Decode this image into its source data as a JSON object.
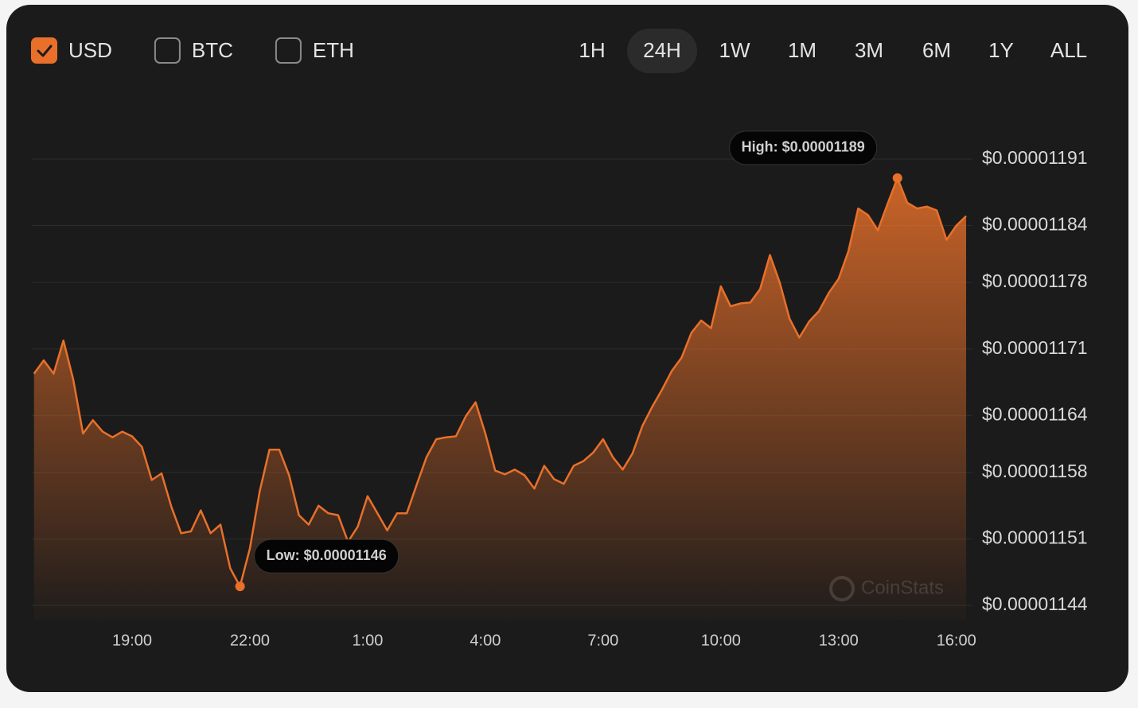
{
  "currencies": [
    {
      "label": "USD",
      "checked": true
    },
    {
      "label": "BTC",
      "checked": false
    },
    {
      "label": "ETH",
      "checked": false
    }
  ],
  "ranges": [
    {
      "label": "1H",
      "selected": false
    },
    {
      "label": "24H",
      "selected": true
    },
    {
      "label": "1W",
      "selected": false
    },
    {
      "label": "1M",
      "selected": false
    },
    {
      "label": "3M",
      "selected": false
    },
    {
      "label": "6M",
      "selected": false
    },
    {
      "label": "1Y",
      "selected": false
    },
    {
      "label": "ALL",
      "selected": false
    }
  ],
  "chart_data": {
    "type": "area",
    "watermark": "CoinStats",
    "color": "#e8702a",
    "grid": true,
    "x": [
      "16:30",
      "16:45",
      "17:00",
      "17:15",
      "17:30",
      "17:45",
      "18:00",
      "18:15",
      "18:30",
      "18:45",
      "19:00",
      "19:15",
      "19:30",
      "19:45",
      "20:00",
      "20:15",
      "20:30",
      "20:45",
      "21:00",
      "21:15",
      "21:30",
      "21:45",
      "22:00",
      "22:15",
      "22:30",
      "22:45",
      "23:00",
      "23:15",
      "23:30",
      "23:45",
      "0:00",
      "0:15",
      "0:30",
      "0:45",
      "1:00",
      "1:15",
      "1:30",
      "1:45",
      "2:00",
      "2:15",
      "2:30",
      "2:45",
      "3:00",
      "3:15",
      "3:30",
      "3:45",
      "4:00",
      "4:15",
      "4:30",
      "4:45",
      "5:00",
      "5:15",
      "5:30",
      "5:45",
      "6:00",
      "6:15",
      "6:30",
      "6:45",
      "7:00",
      "7:15",
      "7:30",
      "7:45",
      "8:00",
      "8:15",
      "8:30",
      "8:45",
      "9:00",
      "9:15",
      "9:30",
      "9:45",
      "10:00",
      "10:15",
      "10:30",
      "10:45",
      "11:00",
      "11:15",
      "11:30",
      "11:45",
      "12:00",
      "12:15",
      "12:30",
      "12:45",
      "13:00",
      "13:15",
      "13:30",
      "13:45",
      "14:00",
      "14:15",
      "14:30",
      "14:45",
      "15:00",
      "15:15",
      "15:30",
      "15:45",
      "16:00",
      "16:15"
    ],
    "values": [
      1.1684e-05,
      1.1698e-05,
      1.1684e-05,
      1.1719e-05,
      1.1678e-05,
      1.1621e-05,
      1.1635e-05,
      1.1623e-05,
      1.1617e-05,
      1.1623e-05,
      1.1618e-05,
      1.1607e-05,
      1.1572e-05,
      1.1579e-05,
      1.1544e-05,
      1.1516e-05,
      1.1518e-05,
      1.154e-05,
      1.1516e-05,
      1.1525e-05,
      1.1479e-05,
      1.146e-05,
      1.15e-05,
      1.156e-05,
      1.1604e-05,
      1.1604e-05,
      1.1577e-05,
      1.1535e-05,
      1.1525e-05,
      1.1545e-05,
      1.1537e-05,
      1.1535e-05,
      1.1507e-05,
      1.1523e-05,
      1.1555e-05,
      1.1537e-05,
      1.1519e-05,
      1.1537e-05,
      1.1537e-05,
      1.1567e-05,
      1.1596e-05,
      1.1615e-05,
      1.1617e-05,
      1.1618e-05,
      1.1639e-05,
      1.1654e-05,
      1.1621e-05,
      1.1582e-05,
      1.1578e-05,
      1.1583e-05,
      1.1577e-05,
      1.1563e-05,
      1.1587e-05,
      1.1573e-05,
      1.1568e-05,
      1.1587e-05,
      1.1592e-05,
      1.1601e-05,
      1.1615e-05,
      1.1596e-05,
      1.1583e-05,
      1.16e-05,
      1.1629e-05,
      1.1649e-05,
      1.1667e-05,
      1.1687e-05,
      1.1701e-05,
      1.1727e-05,
      1.174e-05,
      1.1732e-05,
      1.1776e-05,
      1.1755e-05,
      1.1758e-05,
      1.1759e-05,
      1.1773e-05,
      1.1809e-05,
      1.178e-05,
      1.1742e-05,
      1.1722e-05,
      1.1739e-05,
      1.175e-05,
      1.1769e-05,
      1.1784e-05,
      1.1813e-05,
      1.1858e-05,
      1.1851e-05,
      1.1835e-05,
      1.1863e-05,
      1.189e-05,
      1.1864e-05,
      1.1858e-05,
      1.186e-05,
      1.1856e-05,
      1.1825e-05,
      1.184e-05,
      1.185e-05
    ],
    "ylim": [
      1.144e-05,
      1.191e-05
    ],
    "yticks": [
      {
        "value": 1.191e-05,
        "label": "$0.00001191"
      },
      {
        "value": 1.184e-05,
        "label": "$0.00001184"
      },
      {
        "value": 1.178e-05,
        "label": "$0.00001178"
      },
      {
        "value": 1.171e-05,
        "label": "$0.00001171"
      },
      {
        "value": 1.164e-05,
        "label": "$0.00001164"
      },
      {
        "value": 1.158e-05,
        "label": "$0.00001158"
      },
      {
        "value": 1.151e-05,
        "label": "$0.00001151"
      },
      {
        "value": 1.144e-05,
        "label": "$0.00001144"
      }
    ],
    "xticks": [
      "19:00",
      "22:00",
      "1:00",
      "4:00",
      "7:00",
      "10:00",
      "13:00",
      "16:00"
    ],
    "annotations": [
      {
        "label": "High: $0.00001189",
        "value": 1.189e-05,
        "x": "14:30",
        "side": "left"
      },
      {
        "label": "Low: $0.00001146",
        "value": 1.146e-05,
        "x": "21:45",
        "side": "right"
      }
    ]
  }
}
